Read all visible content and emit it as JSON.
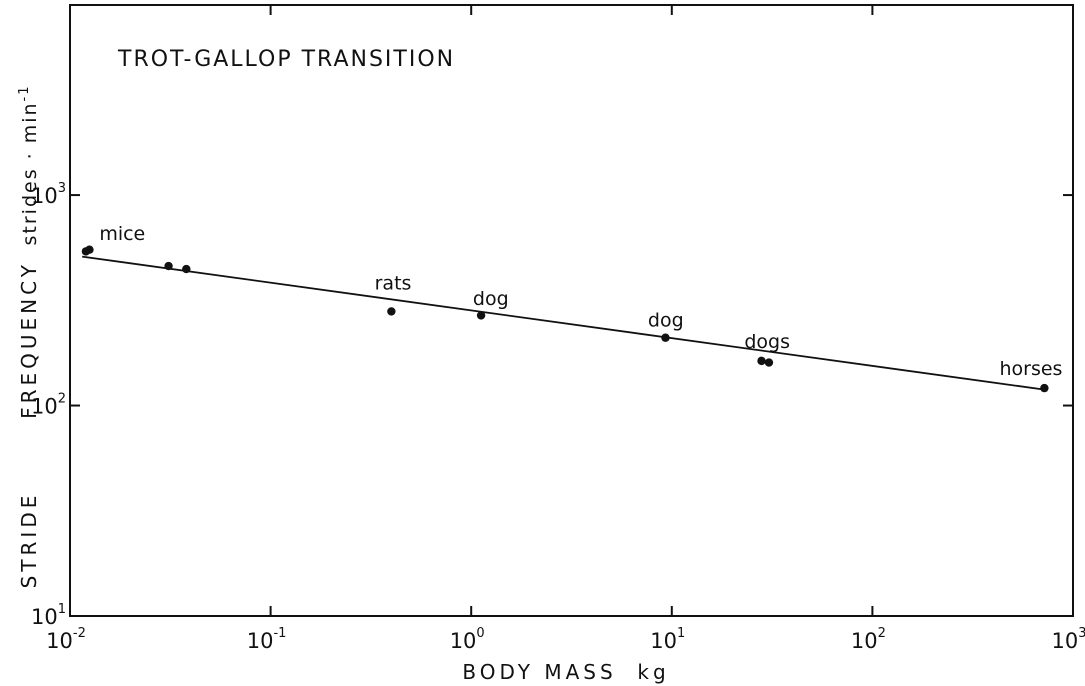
{
  "chart_data": {
    "type": "scatter",
    "title": "TROT-GALLOP TRANSITION",
    "xlabel": "BODY MASS  kg",
    "ylabel_parts": [
      "STRIDE",
      "FREQUENCY",
      "strides · min"
    ],
    "ylabel_exponent": "-1",
    "x_scale": "log",
    "y_scale": "log",
    "xlim": [
      0.01,
      1000
    ],
    "ylim": [
      10,
      8000
    ],
    "x_ticks": [
      {
        "base": "10",
        "exp": "-2",
        "value": 0.01
      },
      {
        "base": "10",
        "exp": "-1",
        "value": 0.1
      },
      {
        "base": "10",
        "exp": "0",
        "value": 1
      },
      {
        "base": "10",
        "exp": "1",
        "value": 10
      },
      {
        "base": "10",
        "exp": "2",
        "value": 100
      },
      {
        "base": "10",
        "exp": "3",
        "value": 1000
      }
    ],
    "y_ticks": [
      {
        "base": "10",
        "exp": "1",
        "value": 10
      },
      {
        "base": "10",
        "exp": "2",
        "value": 100
      },
      {
        "base": "10",
        "exp": "3",
        "value": 1000
      }
    ],
    "points": [
      {
        "x": 0.012,
        "y": 540
      },
      {
        "x": 0.0125,
        "y": 550
      },
      {
        "x": 0.031,
        "y": 460
      },
      {
        "x": 0.038,
        "y": 445
      },
      {
        "x": 0.4,
        "y": 280
      },
      {
        "x": 1.12,
        "y": 268
      },
      {
        "x": 9.3,
        "y": 210
      },
      {
        "x": 28,
        "y": 163
      },
      {
        "x": 30.5,
        "y": 160
      },
      {
        "x": 720,
        "y": 121
      }
    ],
    "fit_line": {
      "x": [
        0.0115,
        720
      ],
      "y": [
        510,
        119
      ]
    },
    "annotations": [
      {
        "text": "mice",
        "x": 0.014,
        "y": 610
      },
      {
        "text": "rats",
        "x": 0.33,
        "y": 355
      },
      {
        "text": "dog",
        "x": 1.02,
        "y": 300
      },
      {
        "text": "dog",
        "x": 7.6,
        "y": 237
      },
      {
        "text": "dogs",
        "x": 23,
        "y": 188
      },
      {
        "text": "horses",
        "x": 430,
        "y": 140
      }
    ],
    "grid": false
  }
}
